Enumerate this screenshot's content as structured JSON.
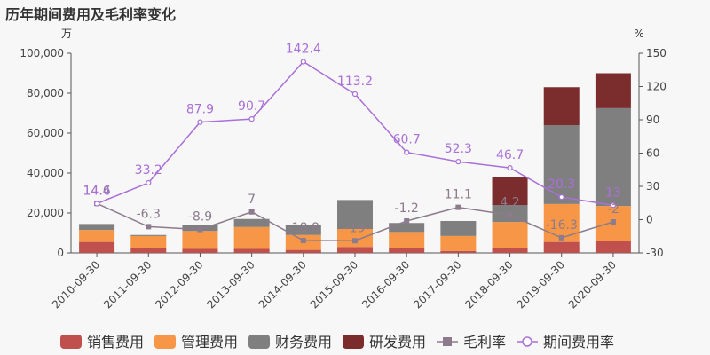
{
  "chart_data": {
    "type": "bar",
    "title": "历年期间费用及毛利率变化",
    "y_left_unit": "万",
    "y_right_unit": "%",
    "y_left_range": [
      0,
      100000
    ],
    "y_left_ticks": [
      "0",
      "20,000",
      "40,000",
      "60,000",
      "80,000",
      "100,000"
    ],
    "y_left_tick_values": [
      0,
      20000,
      40000,
      60000,
      80000,
      100000
    ],
    "y_right_range": [
      -30,
      150
    ],
    "y_right_ticks": [
      "-30",
      "0",
      "30",
      "60",
      "90",
      "120",
      "150"
    ],
    "y_right_tick_values": [
      -30,
      0,
      30,
      60,
      90,
      120,
      150
    ],
    "categories": [
      "2010-09-30",
      "2011-09-30",
      "2012-09-30",
      "2013-09-30",
      "2014-09-30",
      "2015-09-30",
      "2016-09-30",
      "2017-09-30",
      "2018-09-30",
      "2019-09-30",
      "2020-09-30"
    ],
    "stacked_series": [
      {
        "name": "销售费用",
        "color": "#c0504d",
        "values": [
          5500,
          2500,
          2000,
          2000,
          1500,
          3000,
          2500,
          1000,
          2500,
          5500,
          6000
        ]
      },
      {
        "name": "管理费用",
        "color": "#f79646",
        "values": [
          6000,
          6000,
          9000,
          11000,
          7500,
          9000,
          8000,
          7500,
          13000,
          19000,
          17500
        ]
      },
      {
        "name": "财务费用",
        "color": "#7f7f7f",
        "values": [
          3000,
          500,
          3000,
          4000,
          5000,
          14500,
          4500,
          7500,
          8500,
          39500,
          49000
        ]
      },
      {
        "name": "研发费用",
        "color": "#7b2d2d",
        "values": [
          0,
          0,
          0,
          0,
          0,
          0,
          0,
          0,
          14000,
          19000,
          17500
        ]
      }
    ],
    "line_series": [
      {
        "name": "毛利率",
        "color": "#8c7b8c",
        "values": [
          14.6,
          -6.3,
          -8.9,
          7,
          -18.8,
          -19,
          -1.2,
          11.1,
          4.2,
          -16.3,
          -2
        ],
        "labels": [
          "14.6",
          "-6.3",
          "-8.9",
          "7",
          "-18.8",
          "-19",
          "-1.2",
          "11.1",
          "4.2",
          "-16.3",
          "-2"
        ]
      },
      {
        "name": "期间费用率",
        "color": "#a970d8",
        "values": [
          14.4,
          33.2,
          87.9,
          90.7,
          142.4,
          113.2,
          60.7,
          52.3,
          46.7,
          20.3,
          13
        ],
        "labels": [
          "14.4",
          "33.2",
          "87.9",
          "90.7",
          "142.4",
          "113.2",
          "60.7",
          "52.3",
          "46.7",
          "20.3",
          "13"
        ]
      }
    ],
    "grid": false,
    "legend_position": "bottom"
  }
}
